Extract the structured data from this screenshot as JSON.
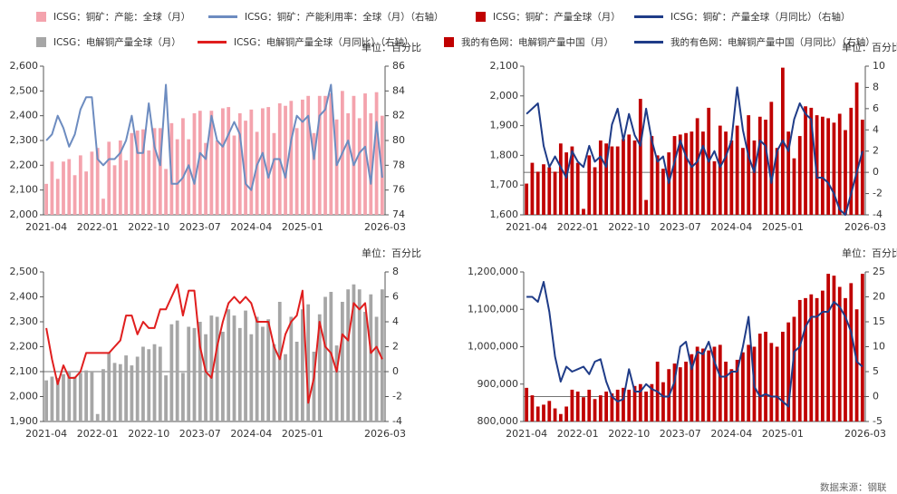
{
  "source": "数据来源：钢联",
  "chart_data": [
    {
      "type": "bar-line",
      "y2_unit_label": "单位：百分比",
      "categories": [
        "2021-04",
        null,
        null,
        null,
        null,
        null,
        null,
        null,
        null,
        "2022-01",
        null,
        null,
        null,
        null,
        null,
        null,
        null,
        null,
        "2022-10",
        null,
        null,
        null,
        null,
        null,
        null,
        null,
        null,
        "2023-07",
        null,
        null,
        null,
        null,
        null,
        null,
        null,
        null,
        "2024-04",
        null,
        null,
        null,
        null,
        null,
        null,
        null,
        null,
        "2025-01",
        null,
        null,
        null,
        null,
        null,
        null,
        null,
        null,
        null,
        null,
        null,
        null,
        null,
        "2026-03"
      ],
      "series": [
        {
          "name": "ICSG：铜矿：产能：全球（月）",
          "kind": "bar",
          "color": "#f4a3ad",
          "values": [
            2125,
            2215,
            2145,
            2215,
            2225,
            2160,
            2240,
            2175,
            2255,
            2270,
            2065,
            2295,
            2200,
            2300,
            2220,
            2330,
            2340,
            2345,
            2260,
            2350,
            2350,
            2185,
            2370,
            2305,
            2390,
            2305,
            2410,
            2420,
            2290,
            2420,
            2300,
            2430,
            2435,
            2320,
            2410,
            2380,
            2425,
            2335,
            2430,
            2435,
            2330,
            2450,
            2440,
            2460,
            2350,
            2465,
            2480,
            2330,
            2480,
            2480,
            2490,
            2385,
            2500,
            2410,
            2480,
            2390,
            2490,
            2410,
            2495,
            2400
          ]
        },
        {
          "name": "ICSG：铜矿：产能利用率：全球（月）（右轴）",
          "kind": "line",
          "axis": "y2",
          "color": "#6d8cc0",
          "values": [
            80,
            80.5,
            82,
            81,
            79.5,
            80.5,
            82.5,
            83.5,
            83.5,
            78.5,
            78,
            78.5,
            78.5,
            79,
            80,
            82,
            79,
            79,
            83,
            79.5,
            78,
            84.5,
            76.5,
            76.5,
            77,
            78,
            76.5,
            79,
            78.5,
            82,
            80,
            79.5,
            80.5,
            81.5,
            80.5,
            76.5,
            76,
            78,
            79,
            77,
            78.5,
            78.5,
            77,
            80,
            82,
            81.5,
            82,
            78.5,
            82,
            82.5,
            84.5,
            78,
            79,
            80,
            78,
            79,
            79.5,
            76.5,
            81.5,
            77
          ]
        }
      ],
      "ylim": [
        2000,
        2600
      ],
      "yticks": [
        {
          "value": 2000,
          "label": "2,000"
        },
        {
          "value": 2100,
          "label": "2,100"
        },
        {
          "value": 2200,
          "label": "2,200"
        },
        {
          "value": 2300,
          "label": "2,300"
        },
        {
          "value": 2400,
          "label": "2,400"
        },
        {
          "value": 2500,
          "label": "2,500"
        },
        {
          "value": 2600,
          "label": "2,600"
        }
      ],
      "y2lim": [
        74,
        86
      ],
      "y2ticks": [
        74,
        76,
        78,
        80,
        82,
        84,
        86
      ]
    },
    {
      "type": "bar-line",
      "y2_unit_label": "单位：百分比",
      "categories": [
        "2021-04",
        null,
        null,
        null,
        null,
        null,
        null,
        null,
        null,
        "2022-01",
        null,
        null,
        null,
        null,
        null,
        null,
        null,
        null,
        "2022-10",
        null,
        null,
        null,
        null,
        null,
        null,
        null,
        null,
        "2023-07",
        null,
        null,
        null,
        null,
        null,
        null,
        null,
        null,
        "2024-04",
        null,
        null,
        null,
        null,
        null,
        null,
        null,
        null,
        "2025-01",
        null,
        null,
        null,
        null,
        null,
        null,
        null,
        null,
        null,
        null,
        null,
        null,
        null,
        "2026-03"
      ],
      "series": [
        {
          "name": "ICSG：铜矿：产量全球（月）",
          "kind": "bar",
          "color": "#c00000",
          "values": [
            1705,
            1775,
            1745,
            1770,
            1760,
            1745,
            1840,
            1810,
            1830,
            1775,
            1620,
            1800,
            1760,
            1850,
            1840,
            1830,
            1830,
            1855,
            1870,
            1850,
            1990,
            1650,
            1865,
            1800,
            1755,
            1810,
            1865,
            1870,
            1875,
            1880,
            1925,
            1880,
            1960,
            1780,
            1900,
            1880,
            1850,
            1900,
            1825,
            1935,
            1850,
            1930,
            1920,
            1980,
            1825,
            2095,
            1880,
            1790,
            1865,
            1965,
            1960,
            1935,
            1930,
            1925,
            1910,
            1940,
            1885,
            1960,
            2045,
            1920
          ]
        },
        {
          "name": "ICSG：铜矿：产量全球（月同比）（右轴）",
          "kind": "line",
          "axis": "y2",
          "color": "#1f3c88",
          "values": [
            5.5,
            6,
            6.5,
            2.5,
            0.5,
            1.5,
            0.5,
            -0.5,
            2,
            1,
            0.5,
            2.5,
            1,
            1.5,
            0.5,
            4.5,
            6,
            3,
            5.5,
            3.5,
            2.5,
            6,
            3,
            1,
            1.5,
            -1,
            1,
            3,
            1.5,
            0.5,
            1,
            2.5,
            1,
            2,
            0.5,
            1.5,
            3,
            8,
            4,
            1.5,
            0,
            3,
            2.5,
            -1,
            2,
            3,
            2,
            5,
            6.5,
            5.5,
            5,
            -0.5,
            -0.5,
            -1,
            -2,
            -3.5,
            -4,
            -2,
            0,
            2
          ]
        }
      ],
      "ylim": [
        1600,
        2100
      ],
      "yticks": [
        {
          "value": 1600,
          "label": "1,600"
        },
        {
          "value": 1700,
          "label": "1,700"
        },
        {
          "value": 1800,
          "label": "1,800"
        },
        {
          "value": 1900,
          "label": "1,900"
        },
        {
          "value": 2000,
          "label": "2,000"
        },
        {
          "value": 2100,
          "label": "2,100"
        }
      ],
      "y2lim": [
        -4,
        10
      ],
      "y2ticks": [
        -4,
        -2,
        0,
        2,
        4,
        6,
        8,
        10
      ]
    },
    {
      "type": "bar-line",
      "y2_unit_label": "单位：百分比",
      "categories": [
        "2021-04",
        null,
        null,
        null,
        null,
        null,
        null,
        null,
        null,
        "2022-01",
        null,
        null,
        null,
        null,
        null,
        null,
        null,
        null,
        "2022-10",
        null,
        null,
        null,
        null,
        null,
        null,
        null,
        null,
        "2023-07",
        null,
        null,
        null,
        null,
        null,
        null,
        null,
        null,
        "2024-04",
        null,
        null,
        null,
        null,
        null,
        null,
        null,
        null,
        "2025-01",
        null,
        null,
        null,
        null,
        null,
        null,
        null,
        null,
        null,
        null,
        null,
        null,
        null,
        "2026-03"
      ],
      "series": [
        {
          "name": "ICSG：电解铜产量全球（月）",
          "kind": "bar",
          "color": "#a6a6a6",
          "values": [
            2065,
            2080,
            2075,
            2090,
            2100,
            2080,
            2095,
            2105,
            2100,
            1930,
            2110,
            2175,
            2135,
            2130,
            2165,
            2125,
            2160,
            2200,
            2190,
            2210,
            2200,
            2085,
            2290,
            2305,
            2095,
            2280,
            2275,
            2300,
            2250,
            2325,
            2320,
            2260,
            2350,
            2325,
            2275,
            2345,
            2250,
            2320,
            2280,
            2310,
            2210,
            2380,
            2170,
            2320,
            2220,
            2350,
            2370,
            2180,
            2330,
            2400,
            2420,
            2205,
            2380,
            2430,
            2450,
            2430,
            2340,
            2410,
            2320,
            2430
          ]
        },
        {
          "name": "ICSG：电解铜产量全球（月同比）（右轴）",
          "kind": "line",
          "axis": "y2",
          "color": "#e01e1e",
          "values": [
            3.5,
            1,
            -1,
            0.5,
            -0.5,
            -0.5,
            0,
            1.5,
            1.5,
            1.5,
            1.5,
            1.5,
            2,
            2.5,
            4.5,
            4.5,
            3,
            4,
            3.5,
            3.5,
            5,
            5,
            6,
            7,
            4.5,
            6.5,
            6.5,
            2,
            0,
            -0.5,
            2,
            4,
            5.5,
            6,
            5.5,
            6,
            5.5,
            4,
            4,
            4,
            2,
            1,
            3,
            4,
            4.5,
            6.5,
            -2.5,
            -0.5,
            4,
            2,
            1.5,
            0,
            3,
            2.5,
            5.5,
            5,
            5.5,
            1.5,
            2,
            1
          ]
        }
      ],
      "ylim": [
        1900,
        2500
      ],
      "yticks": [
        {
          "value": 1900,
          "label": "1,900"
        },
        {
          "value": 2000,
          "label": "2,000"
        },
        {
          "value": 2100,
          "label": "2,100"
        },
        {
          "value": 2200,
          "label": "2,200"
        },
        {
          "value": 2300,
          "label": "2,300"
        },
        {
          "value": 2400,
          "label": "2,400"
        },
        {
          "value": 2500,
          "label": "2,500"
        }
      ],
      "y2lim": [
        -4,
        8
      ],
      "y2ticks": [
        -4,
        -2,
        0,
        2,
        4,
        6,
        8
      ]
    },
    {
      "type": "bar-line",
      "y2_unit_label": "单位：百分比",
      "categories": [
        "2021-04",
        null,
        null,
        null,
        null,
        null,
        null,
        null,
        null,
        "2022-01",
        null,
        null,
        null,
        null,
        null,
        null,
        null,
        null,
        "2022-10",
        null,
        null,
        null,
        null,
        null,
        null,
        null,
        null,
        "2023-07",
        null,
        null,
        null,
        null,
        null,
        null,
        null,
        null,
        "2024-04",
        null,
        null,
        null,
        null,
        null,
        null,
        null,
        null,
        "2025-01",
        null,
        null,
        null,
        null,
        null,
        null,
        null,
        null,
        null,
        null,
        null,
        null,
        null,
        "2026-03"
      ],
      "series": [
        {
          "name": "我的有色网：电解铜产量中国（月）",
          "kind": "bar",
          "color": "#c00000",
          "values": [
            890000,
            870000,
            840000,
            845000,
            855000,
            835000,
            820000,
            840000,
            885000,
            880000,
            865000,
            885000,
            860000,
            870000,
            880000,
            875000,
            885000,
            890000,
            885000,
            895000,
            900000,
            880000,
            900000,
            960000,
            905000,
            940000,
            955000,
            945000,
            960000,
            980000,
            1000000,
            995000,
            990000,
            1000000,
            1005000,
            960000,
            940000,
            965000,
            985000,
            1005000,
            1000000,
            1035000,
            1040000,
            1010000,
            1000000,
            1040000,
            1065000,
            1080000,
            1125000,
            1130000,
            1140000,
            1130000,
            1150000,
            1195000,
            1190000,
            1160000,
            1130000,
            1170000,
            1100000,
            1195000
          ]
        },
        {
          "name": "我的有色网：电解铜产量中国（月同比）（右轴）",
          "kind": "line",
          "axis": "y2",
          "color": "#1f3c88",
          "values": [
            20,
            20,
            19,
            23,
            17,
            8,
            3,
            6,
            5,
            5.5,
            6,
            4.5,
            7,
            7.5,
            3,
            0,
            -1,
            -0.5,
            5.5,
            1,
            1,
            2.5,
            1.5,
            1,
            0,
            0,
            3,
            10,
            11,
            5.5,
            9,
            8.5,
            11,
            7,
            4,
            4,
            5,
            5,
            10,
            16,
            2,
            0,
            0.5,
            0,
            0,
            -1,
            -2,
            9,
            10,
            14,
            16,
            16,
            17,
            17,
            19,
            18,
            16,
            13,
            7,
            6
          ]
        }
      ],
      "ylim": [
        800000,
        1200000
      ],
      "yticks": [
        {
          "value": 800000,
          "label": "800,000"
        },
        {
          "value": 900000,
          "label": "900,000"
        },
        {
          "value": 1000000,
          "label": "1,000,000"
        },
        {
          "value": 1100000,
          "label": "1,100,000"
        },
        {
          "value": 1200000,
          "label": "1,200,000"
        }
      ],
      "y2lim": [
        -5,
        25
      ],
      "y2ticks": [
        -5,
        0,
        5,
        10,
        15,
        20,
        25
      ]
    }
  ]
}
